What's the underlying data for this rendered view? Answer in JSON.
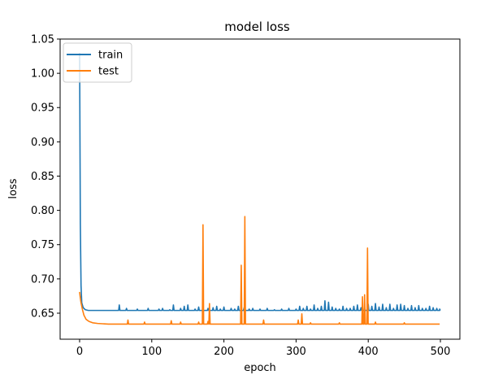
{
  "chart_data": {
    "type": "line",
    "title": "model loss",
    "xlabel": "epoch",
    "ylabel": "loss",
    "xlim": [
      -27,
      527
    ],
    "ylim": [
      0.612,
      1.05
    ],
    "xticks": [
      0,
      100,
      200,
      300,
      400,
      500
    ],
    "yticks": [
      0.65,
      0.7,
      0.75,
      0.8,
      0.85,
      0.9,
      0.95,
      1.0,
      1.05
    ],
    "ytick_labels": [
      "0.65",
      "0.70",
      "0.75",
      "0.80",
      "0.85",
      "0.90",
      "0.95",
      "1.00",
      "1.05"
    ],
    "grid": false,
    "legend": {
      "position": "top-left"
    },
    "colors": {
      "train": "#1f77b4",
      "test": "#ff7f0e"
    },
    "series": [
      {
        "name": "train",
        "baseline": 0.654,
        "points": [
          [
            0,
            1.03
          ],
          [
            1,
            0.78
          ],
          [
            2,
            0.69
          ],
          [
            3,
            0.665
          ],
          [
            5,
            0.658
          ],
          [
            8,
            0.655
          ],
          [
            12,
            0.654
          ],
          [
            499,
            0.654
          ]
        ],
        "spikes": [
          [
            55,
            0.662
          ],
          [
            65,
            0.657
          ],
          [
            80,
            0.656
          ],
          [
            95,
            0.657
          ],
          [
            110,
            0.656
          ],
          [
            115,
            0.657
          ],
          [
            125,
            0.655
          ],
          [
            130,
            0.662
          ],
          [
            140,
            0.657
          ],
          [
            145,
            0.66
          ],
          [
            150,
            0.662
          ],
          [
            160,
            0.656
          ],
          [
            165,
            0.659
          ],
          [
            178,
            0.657
          ],
          [
            185,
            0.658
          ],
          [
            190,
            0.66
          ],
          [
            195,
            0.656
          ],
          [
            200,
            0.659
          ],
          [
            210,
            0.657
          ],
          [
            215,
            0.656
          ],
          [
            220,
            0.66
          ],
          [
            228,
            0.658
          ],
          [
            235,
            0.656
          ],
          [
            240,
            0.657
          ],
          [
            250,
            0.656
          ],
          [
            260,
            0.657
          ],
          [
            270,
            0.655
          ],
          [
            280,
            0.656
          ],
          [
            290,
            0.657
          ],
          [
            300,
            0.656
          ],
          [
            305,
            0.66
          ],
          [
            310,
            0.657
          ],
          [
            315,
            0.66
          ],
          [
            320,
            0.656
          ],
          [
            325,
            0.662
          ],
          [
            330,
            0.657
          ],
          [
            335,
            0.66
          ],
          [
            340,
            0.668
          ],
          [
            345,
            0.666
          ],
          [
            350,
            0.659
          ],
          [
            355,
            0.657
          ],
          [
            360,
            0.656
          ],
          [
            365,
            0.66
          ],
          [
            370,
            0.657
          ],
          [
            375,
            0.657
          ],
          [
            380,
            0.66
          ],
          [
            385,
            0.662
          ],
          [
            390,
            0.658
          ],
          [
            395,
            0.658
          ],
          [
            400,
            0.663
          ],
          [
            405,
            0.66
          ],
          [
            410,
            0.664
          ],
          [
            415,
            0.659
          ],
          [
            420,
            0.663
          ],
          [
            425,
            0.658
          ],
          [
            430,
            0.663
          ],
          [
            435,
            0.657
          ],
          [
            440,
            0.662
          ],
          [
            445,
            0.663
          ],
          [
            450,
            0.661
          ],
          [
            455,
            0.657
          ],
          [
            460,
            0.661
          ],
          [
            465,
            0.658
          ],
          [
            470,
            0.661
          ],
          [
            475,
            0.657
          ],
          [
            480,
            0.657
          ],
          [
            485,
            0.66
          ],
          [
            490,
            0.658
          ],
          [
            495,
            0.657
          ],
          [
            499,
            0.656
          ]
        ]
      },
      {
        "name": "test",
        "baseline": 0.634,
        "points": [
          [
            0,
            0.681
          ],
          [
            1,
            0.672
          ],
          [
            2,
            0.665
          ],
          [
            4,
            0.655
          ],
          [
            6,
            0.647
          ],
          [
            9,
            0.641
          ],
          [
            13,
            0.638
          ],
          [
            18,
            0.636
          ],
          [
            25,
            0.635
          ],
          [
            40,
            0.634
          ],
          [
            499,
            0.634
          ]
        ],
        "spikes": [
          [
            67,
            0.64
          ],
          [
            90,
            0.637
          ],
          [
            127,
            0.639
          ],
          [
            140,
            0.637
          ],
          [
            165,
            0.637
          ],
          [
            171,
            0.779
          ],
          [
            178,
            0.638
          ],
          [
            180,
            0.664
          ],
          [
            224,
            0.72
          ],
          [
            229,
            0.791
          ],
          [
            255,
            0.64
          ],
          [
            303,
            0.64
          ],
          [
            308,
            0.649
          ],
          [
            320,
            0.636
          ],
          [
            360,
            0.636
          ],
          [
            392,
            0.674
          ],
          [
            395,
            0.677
          ],
          [
            399,
            0.745
          ],
          [
            410,
            0.637
          ],
          [
            450,
            0.636
          ]
        ]
      }
    ]
  }
}
